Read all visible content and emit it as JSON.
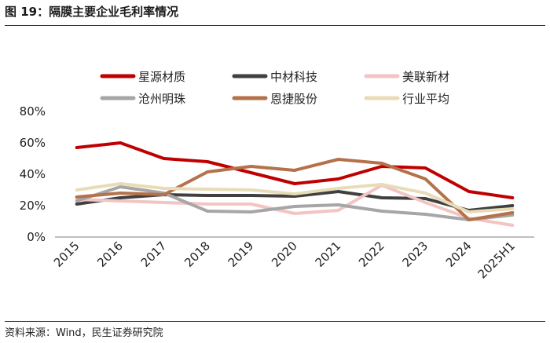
{
  "figure": {
    "title": "图 19：隔膜主要企业毛利率情况",
    "source": "资料来源：Wind，民生证券研究院"
  },
  "chart_data": {
    "type": "line",
    "categories": [
      "2015",
      "2016",
      "2017",
      "2018",
      "2019",
      "2020",
      "2021",
      "2022",
      "2023",
      "2024",
      "2025H1"
    ],
    "ylim": [
      0,
      80
    ],
    "yticks": [
      "0%",
      "20%",
      "40%",
      "60%",
      "80%"
    ],
    "grid": false,
    "legend_position": "top",
    "series": [
      {
        "name": "星源材质",
        "color": "#c00000",
        "values": [
          57,
          60,
          50,
          48,
          41,
          34,
          37,
          45,
          44,
          29,
          25
        ]
      },
      {
        "name": "中材科技",
        "color": "#404040",
        "values": [
          21,
          25,
          27,
          26.5,
          26.5,
          26,
          29,
          25,
          24.5,
          17,
          20
        ]
      },
      {
        "name": "美联新材",
        "color": "#f2c4c4",
        "values": [
          24,
          23,
          22,
          21,
          21,
          15,
          17,
          33,
          22,
          12,
          7.5
        ]
      },
      {
        "name": "沧州明珠",
        "color": "#a6a6a6",
        "values": [
          23,
          32,
          28,
          16.5,
          16,
          19.5,
          20.5,
          16.5,
          14.5,
          11,
          14
        ]
      },
      {
        "name": "恩捷股份",
        "color": "#b5714a",
        "values": [
          25.5,
          28,
          27,
          41.5,
          45,
          42.5,
          49.5,
          47,
          37,
          11,
          15.5
        ]
      },
      {
        "name": "行业平均",
        "color": "#e8dcb8",
        "values": [
          30,
          34,
          31,
          30.5,
          30,
          27.5,
          31,
          33.5,
          28,
          16,
          18
        ]
      }
    ]
  }
}
